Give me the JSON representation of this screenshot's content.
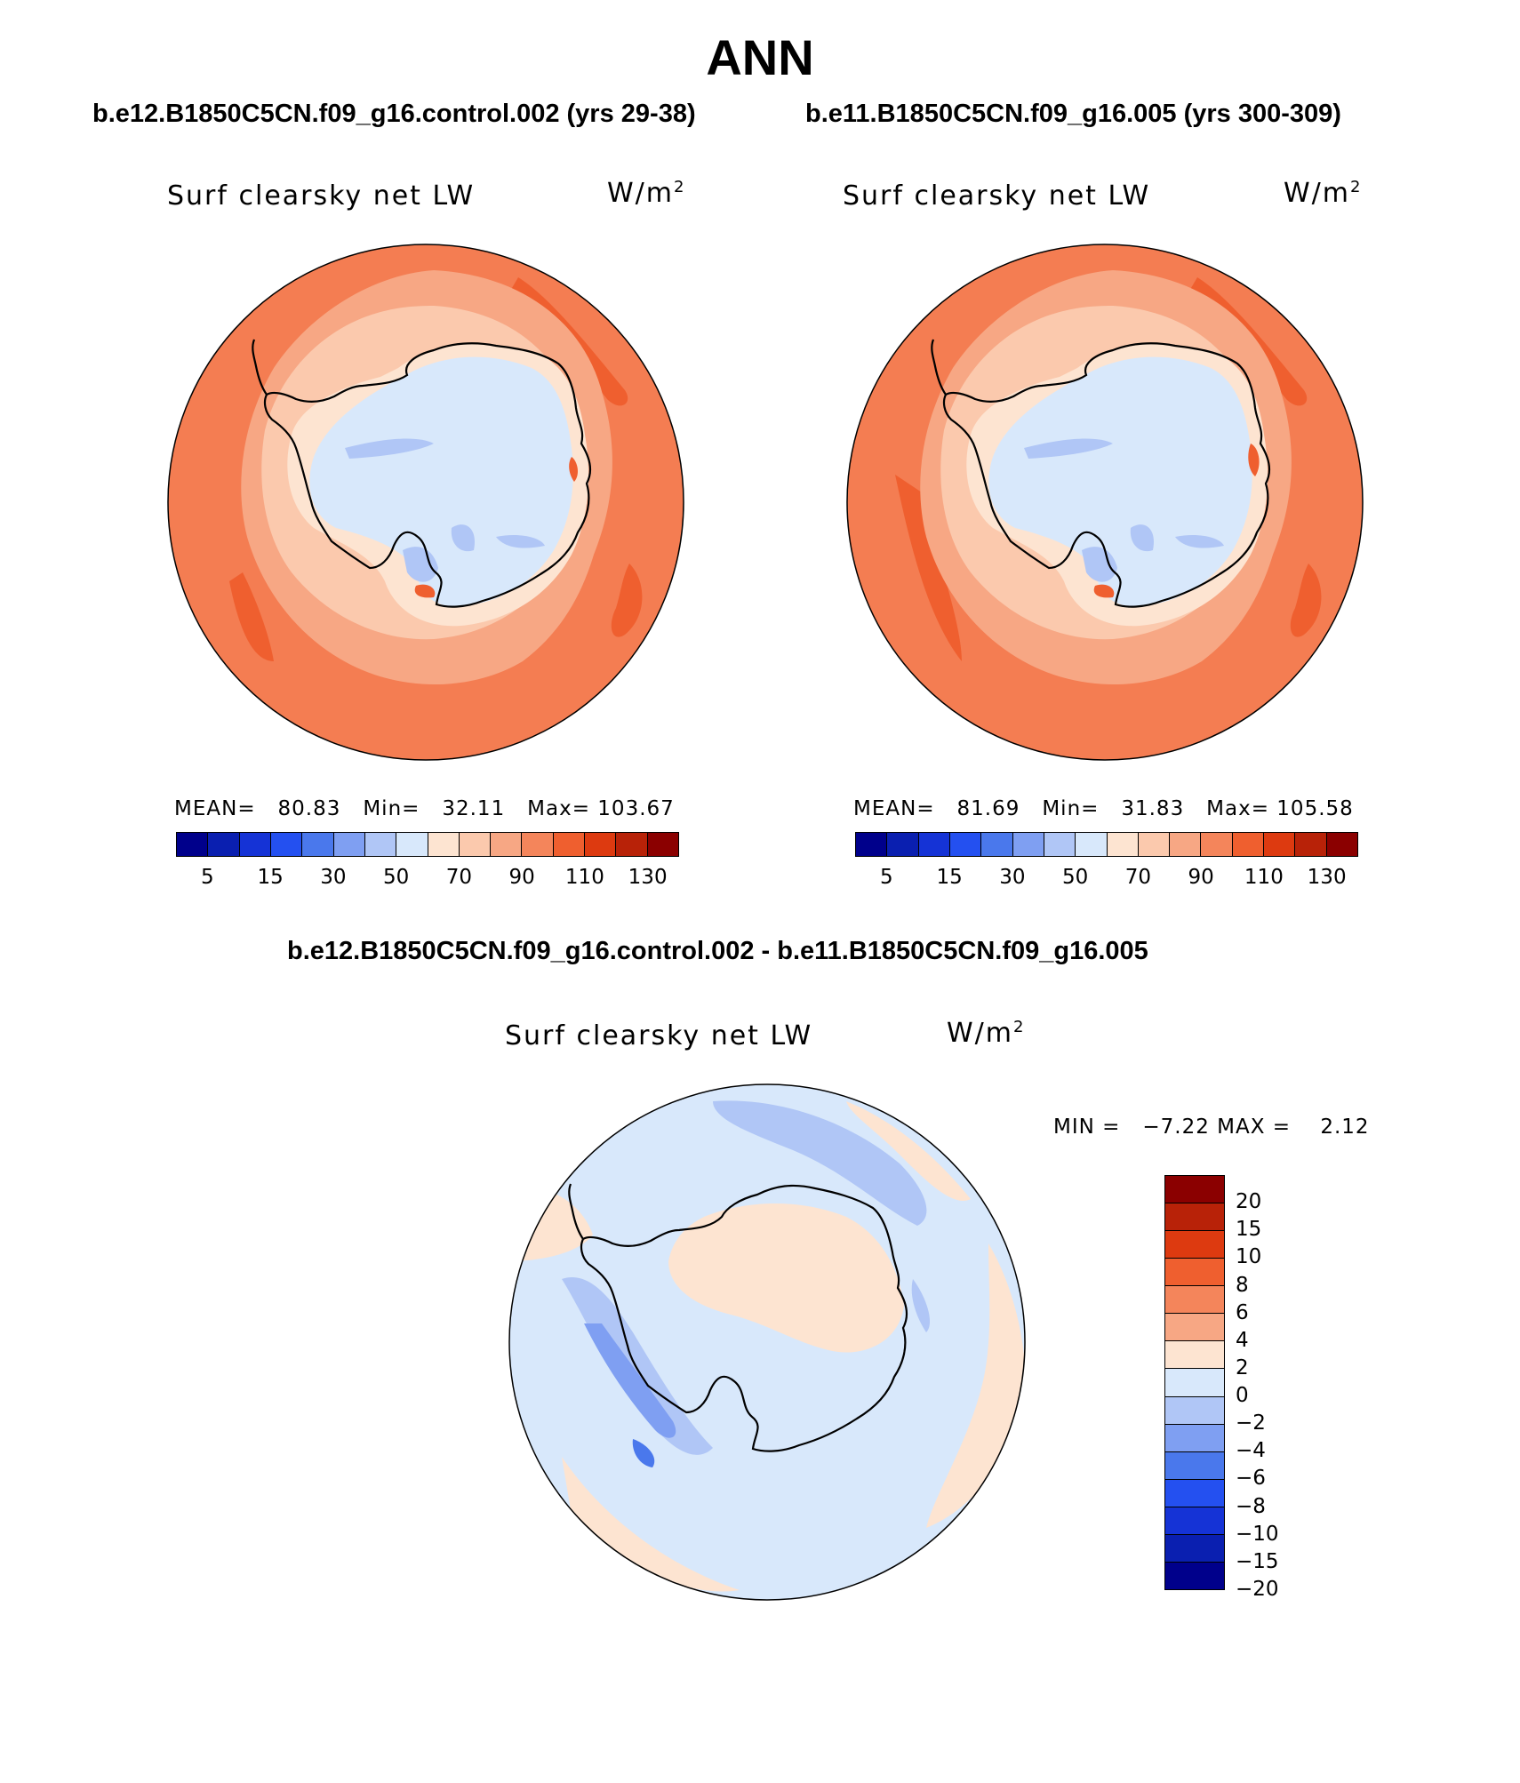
{
  "title": "ANN",
  "panels": [
    {
      "case_label": "b.e12.B1850C5CN.f09_g16.control.002 (yrs 29-38)",
      "variable": "Surf clearsky net LW",
      "units_base": "W/m",
      "units_exp": "2",
      "stats": {
        "mean_label": "MEAN=",
        "mean": "80.83",
        "min_label": "Min=",
        "min": "32.11",
        "max_label": "Max=",
        "max": "103.67"
      }
    },
    {
      "case_label": "b.e11.B1850C5CN.f09_g16.005 (yrs 300-309)",
      "variable": "Surf clearsky net LW",
      "units_base": "W/m",
      "units_exp": "2",
      "stats": {
        "mean_label": "MEAN=",
        "mean": "81.69",
        "min_label": "Min=",
        "min": "31.83",
        "max_label": "Max=",
        "max": "105.58"
      }
    },
    {
      "case_label": "b.e12.B1850C5CN.f09_g16.control.002 - b.e11.B1850C5CN.f09_g16.005",
      "variable": "Surf clearsky net LW",
      "units_base": "W/m",
      "units_exp": "2",
      "stats": {
        "min_label": "MIN =",
        "min": "−7.22",
        "max_label": "MAX =",
        "max": "2.12"
      }
    }
  ],
  "colorbar_abs": {
    "colors": [
      "#00008b",
      "#0a1fb0",
      "#1533d6",
      "#2450f0",
      "#4a78ec",
      "#7f9ff2",
      "#b0c6f6",
      "#d8e8fb",
      "#fde4d1",
      "#fbc9ad",
      "#f7a784",
      "#f4855b",
      "#ef5f2f",
      "#dd3a10",
      "#b82208",
      "#8b0000"
    ],
    "labels": [
      "5",
      "15",
      "30",
      "50",
      "70",
      "90",
      "110",
      "130"
    ]
  },
  "colorbar_diff": {
    "colors": [
      "#8b0000",
      "#b82208",
      "#dd3a10",
      "#ef5f2f",
      "#f4855b",
      "#f7a784",
      "#fde4d1",
      "#d8e8fb",
      "#b0c6f6",
      "#7f9ff2",
      "#4a78ec",
      "#2450f0",
      "#1533d6",
      "#0a1fb0",
      "#00008b"
    ],
    "labels": [
      "20",
      "15",
      "10",
      "8",
      "6",
      "4",
      "2",
      "0",
      "−2",
      "−4",
      "−6",
      "−8",
      "−10",
      "−15",
      "−20"
    ]
  },
  "map_colors": {
    "ocean_outer": "#f47d52",
    "ocean_band_mid": "#f7a784",
    "ocean_band_inner": "#fbc9ad",
    "coast_rim": "#fde4d1",
    "plateau": "#d8e8fb",
    "plateau_low": "#b0c6f6",
    "hot_spot": "#ef5f2f",
    "diff_base": "#d8e8fb",
    "diff_warm": "#fde4d1",
    "diff_cool": "#b0c6f6",
    "diff_cooler": "#7f9ff2",
    "diff_coolest": "#4a78ec"
  }
}
